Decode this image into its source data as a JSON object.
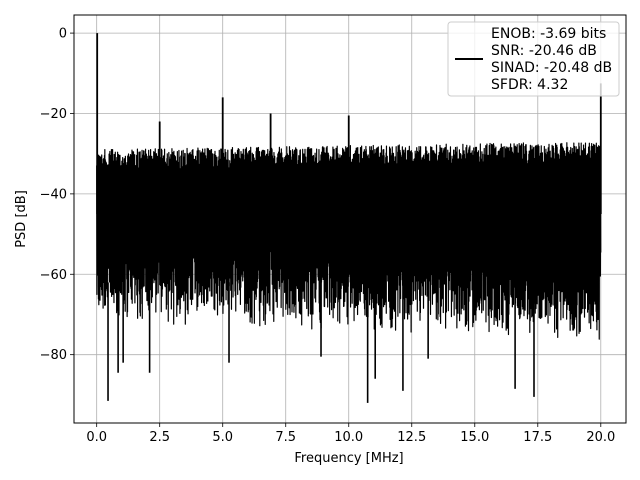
{
  "chart_data": {
    "type": "line",
    "title": "",
    "xlabel": "Frequency [MHz]",
    "ylabel": "PSD [dB]",
    "xlim": [
      -0.9,
      21.0
    ],
    "ylim": [
      -97,
      4.5
    ],
    "xticks": [
      0.0,
      2.5,
      5.0,
      7.5,
      10.0,
      12.5,
      15.0,
      17.5,
      20.0
    ],
    "xtick_labels": [
      "0.0",
      "2.5",
      "5.0",
      "7.5",
      "10.0",
      "12.5",
      "15.0",
      "17.5",
      "20.0"
    ],
    "yticks": [
      0,
      -20,
      -40,
      -60,
      -80
    ],
    "ytick_labels": [
      "0",
      "−20",
      "−40",
      "−60",
      "−80"
    ],
    "grid": true,
    "legend_position": "top-right",
    "series": [
      {
        "color": "#000000",
        "noise_band": {
          "x_range": [
            0.0,
            20.0
          ],
          "upper_envelope_db": [
            -29,
            -27
          ],
          "typical_floor_db": [
            -68,
            -74
          ],
          "deep_dips": [
            {
              "x": 0.45,
              "y": -91.5
            },
            {
              "x": 0.85,
              "y": -84.5
            },
            {
              "x": 1.05,
              "y": -82
            },
            {
              "x": 2.1,
              "y": -84.5
            },
            {
              "x": 5.25,
              "y": -82
            },
            {
              "x": 8.9,
              "y": -80.5
            },
            {
              "x": 10.75,
              "y": -92
            },
            {
              "x": 11.05,
              "y": -86
            },
            {
              "x": 12.15,
              "y": -89
            },
            {
              "x": 13.15,
              "y": -81
            },
            {
              "x": 16.6,
              "y": -88.5
            },
            {
              "x": 17.35,
              "y": -90.5
            }
          ]
        },
        "peaks": [
          {
            "x": 0.02,
            "y": 0.0
          },
          {
            "x": 2.5,
            "y": -22.0
          },
          {
            "x": 5.0,
            "y": -16.0
          },
          {
            "x": 6.9,
            "y": -20.0
          },
          {
            "x": 10.0,
            "y": -20.5
          },
          {
            "x": 20.0,
            "y": -12.5
          }
        ]
      }
    ],
    "legend": {
      "lines": [
        "ENOB: -3.69 bits",
        "SNR: -20.46 dB",
        "SINAD: -20.48 dB",
        "SFDR: 4.32"
      ]
    }
  }
}
